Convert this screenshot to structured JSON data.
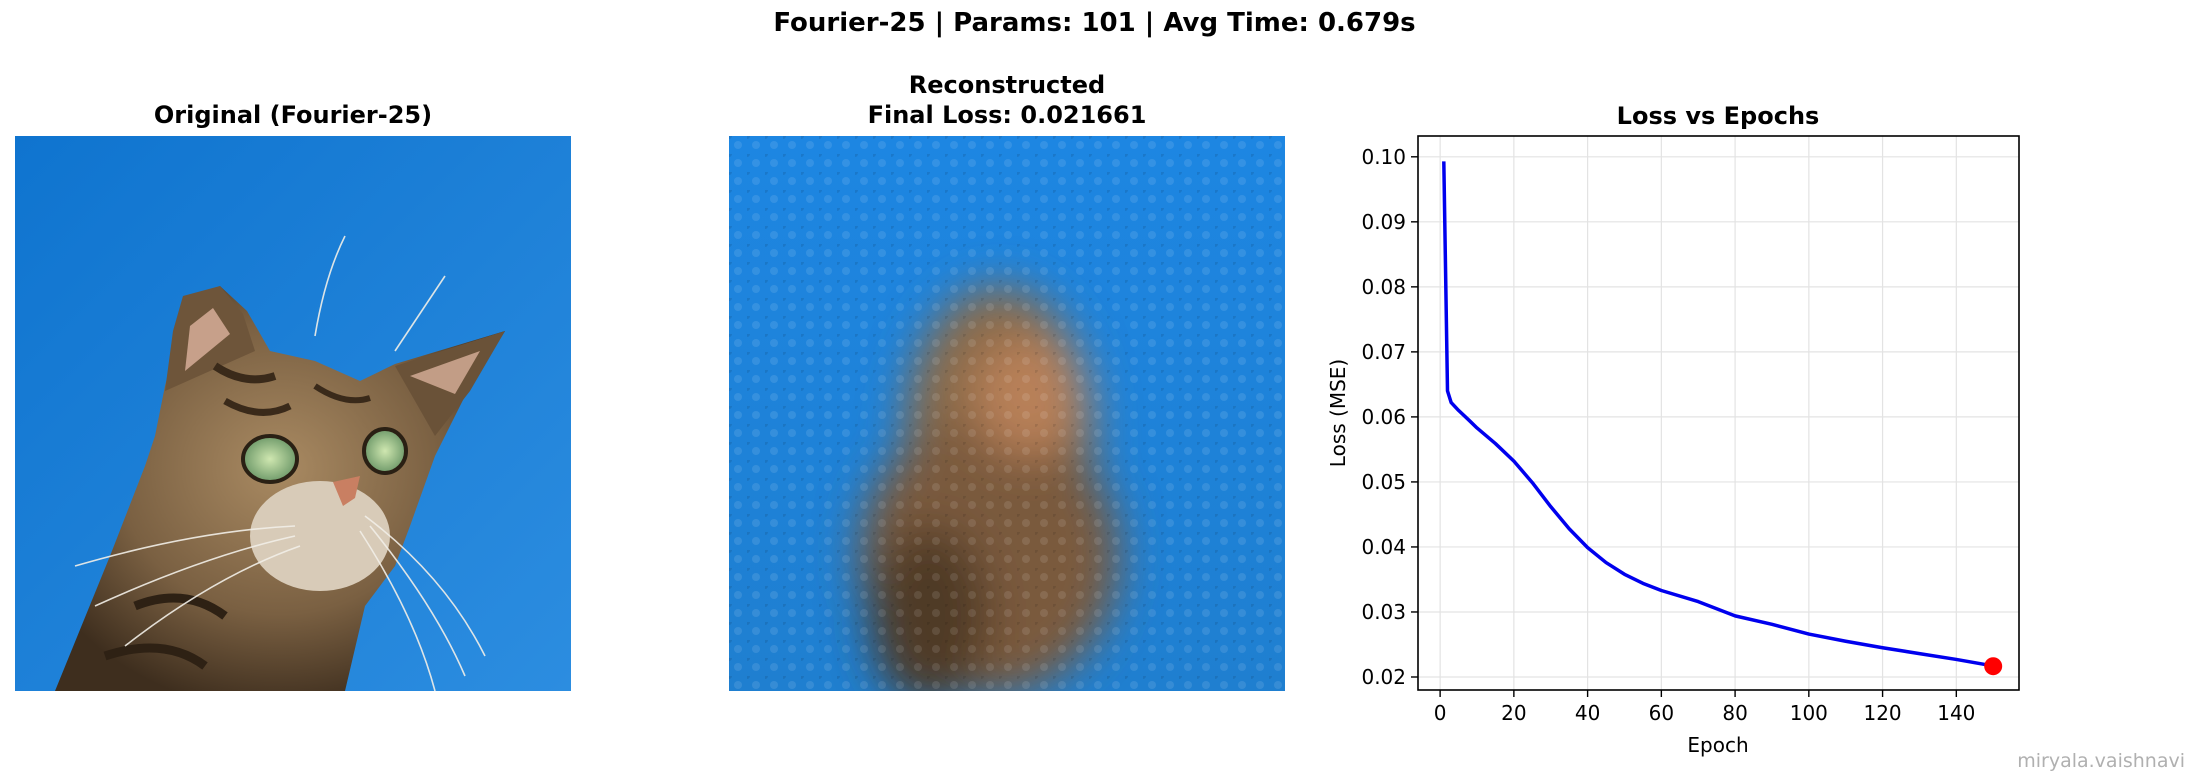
{
  "suptitle": "Fourier-25 | Params: 101 | Avg Time: 0.679s",
  "panels": {
    "original": {
      "title": "Original (Fourier-25)"
    },
    "reconstructed": {
      "title_line1": "Reconstructed",
      "title_line2": "Final Loss: 0.021661"
    }
  },
  "watermark": "miryala.vaishnavi",
  "colors": {
    "line": "#0000ee",
    "endpoint": "#ff0000",
    "sky": "#1a7fd6"
  },
  "chart_data": {
    "type": "line",
    "title": "Loss vs Epochs",
    "xlabel": "Epoch",
    "ylabel": "Loss (MSE)",
    "xlim": [
      -6,
      157
    ],
    "ylim": [
      0.018,
      0.1032
    ],
    "xticks": [
      0,
      20,
      40,
      60,
      80,
      100,
      120,
      140
    ],
    "yticks": [
      0.02,
      0.03,
      0.04,
      0.05,
      0.06,
      0.07,
      0.08,
      0.09,
      0.1
    ],
    "ytick_labels": [
      "0.02",
      "0.03",
      "0.04",
      "0.05",
      "0.06",
      "0.07",
      "0.08",
      "0.09",
      "0.10"
    ],
    "grid": true,
    "series": [
      {
        "x": [
          1,
          2,
          3,
          5,
          8,
          10,
          15,
          20,
          25,
          30,
          35,
          40,
          45,
          50,
          55,
          60,
          70,
          80,
          90,
          100,
          110,
          120,
          130,
          140,
          150
        ],
        "y": [
          0.0993,
          0.064,
          0.0622,
          0.061,
          0.0594,
          0.0583,
          0.0559,
          0.0532,
          0.0499,
          0.0462,
          0.0428,
          0.0399,
          0.0376,
          0.0358,
          0.0344,
          0.0333,
          0.0316,
          0.0294,
          0.0281,
          0.0266,
          0.0255,
          0.0245,
          0.0236,
          0.0227,
          0.0217
        ]
      }
    ],
    "final_point": {
      "x": 150,
      "y": 0.021661
    }
  }
}
